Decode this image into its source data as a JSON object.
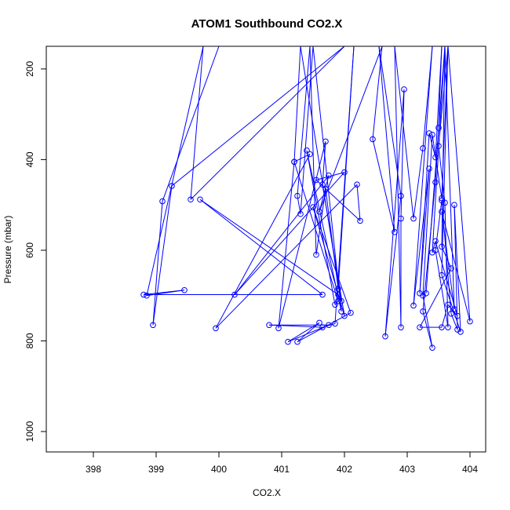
{
  "chart_data": {
    "type": "line",
    "title": "ATOM1 Southbound CO2.X",
    "xlabel": "CO2.X",
    "ylabel": "Pressure (mbar)",
    "xlim": [
      397.25,
      404.25
    ],
    "ylim": [
      1045,
      150
    ],
    "y_reversed": true,
    "x_ticks": [
      398,
      399,
      400,
      401,
      402,
      403,
      404
    ],
    "y_ticks": [
      200,
      400,
      600,
      800,
      1000
    ],
    "grid": false,
    "legend": "none",
    "line_style": "line-with-open-circles",
    "series_color": "#0000ff",
    "series": [
      {
        "points": [
          [
            400.0,
            150
          ],
          [
            399.1,
            492
          ],
          [
            398.95,
            765
          ],
          [
            399.25,
            458
          ],
          [
            402.0,
            150
          ],
          [
            399.55,
            488
          ],
          [
            399.75,
            150
          ],
          [
            398.85,
            700
          ],
          [
            399.45,
            688
          ],
          [
            398.8,
            698
          ],
          [
            401.65,
            698
          ],
          [
            399.7,
            488
          ],
          [
            401.9,
            698
          ],
          [
            401.95,
            712
          ],
          [
            401.3,
            150
          ],
          [
            401.2,
            405
          ],
          [
            401.9,
            712
          ],
          [
            401.85,
            720
          ],
          [
            401.4,
            380
          ],
          [
            401.95,
            735
          ],
          [
            401.5,
            150
          ],
          [
            401.3,
            520
          ],
          [
            401.25,
            480
          ],
          [
            401.45,
            150
          ],
          [
            401.55,
            610
          ],
          [
            401.7,
            465
          ],
          [
            401.9,
            685
          ],
          [
            402.15,
            150
          ],
          [
            401.85,
            762
          ],
          [
            401.65,
            770
          ],
          [
            400.8,
            765
          ],
          [
            401.75,
            765
          ],
          [
            401.1,
            802
          ],
          [
            401.6,
            760
          ],
          [
            401.25,
            802
          ],
          [
            402.1,
            738
          ],
          [
            401.5,
            505
          ],
          [
            402.0,
            745
          ],
          [
            401.65,
            455
          ],
          [
            401.7,
            360
          ],
          [
            400.95,
            772
          ],
          [
            401.2,
            405
          ],
          [
            401.45,
            388
          ],
          [
            399.95,
            772
          ],
          [
            402.2,
            455
          ],
          [
            402.25,
            535
          ],
          [
            401.55,
            445
          ],
          [
            402.0,
            428
          ],
          [
            400.25,
            698
          ],
          [
            401.75,
            435
          ],
          [
            401.6,
            515
          ],
          [
            402.6,
            150
          ],
          [
            402.45,
            355
          ],
          [
            402.8,
            560
          ],
          [
            402.55,
            150
          ],
          [
            402.9,
            480
          ],
          [
            402.65,
            790
          ],
          [
            402.95,
            245
          ],
          [
            402.9,
            530
          ],
          [
            402.9,
            770
          ],
          [
            402.8,
            150
          ],
          [
            403.1,
            530
          ],
          [
            403.25,
            375
          ],
          [
            403.4,
            150
          ],
          [
            403.1,
            722
          ],
          [
            403.35,
            420
          ],
          [
            403.2,
            695
          ],
          [
            403.35,
            342
          ],
          [
            403.45,
            395
          ],
          [
            403.55,
            150
          ],
          [
            403.5,
            330
          ],
          [
            403.45,
            450
          ],
          [
            403.25,
            735
          ],
          [
            403.4,
            815
          ],
          [
            403.25,
            700
          ],
          [
            403.4,
            345
          ],
          [
            403.55,
            485
          ],
          [
            403.65,
            150
          ],
          [
            403.5,
            370
          ],
          [
            403.6,
            495
          ],
          [
            403.65,
            770
          ],
          [
            403.45,
            600
          ],
          [
            403.55,
            490
          ],
          [
            403.7,
            740
          ],
          [
            403.8,
            775
          ],
          [
            403.75,
            500
          ],
          [
            403.85,
            780
          ],
          [
            403.55,
            655
          ],
          [
            403.65,
            150
          ],
          [
            404.0,
            757
          ],
          [
            403.55,
            515
          ],
          [
            403.75,
            730
          ],
          [
            403.6,
            150
          ],
          [
            403.55,
            592
          ],
          [
            403.7,
            640
          ],
          [
            403.2,
            770
          ],
          [
            403.55,
            770
          ],
          [
            403.65,
            720
          ],
          [
            403.8,
            745
          ],
          [
            403.45,
            580
          ],
          [
            403.4,
            605
          ],
          [
            403.6,
            150
          ],
          [
            403.3,
            695
          ]
        ]
      }
    ]
  }
}
